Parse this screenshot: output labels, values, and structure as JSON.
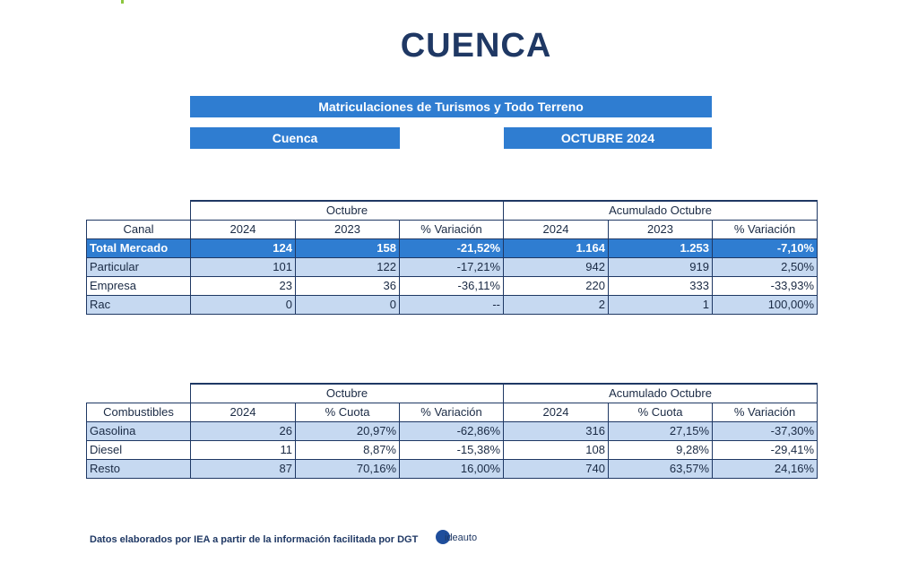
{
  "title": "CUENCA",
  "banner_main": "Matriculaciones de Turismos y Todo Terreno",
  "banner_region": "Cuenca",
  "banner_period": "OCTUBRE 2024",
  "table1": {
    "group_month": "Octubre",
    "group_cumulative": "Acumulado Octubre",
    "headers": [
      "Canal",
      "2024",
      "2023",
      "% Variación",
      "2024",
      "2023",
      "% Variación"
    ],
    "rows": [
      [
        "Total Mercado",
        "124",
        "158",
        "-21,52%",
        "1.164",
        "1.253",
        "-7,10%"
      ],
      [
        "Particular",
        "101",
        "122",
        "-17,21%",
        "942",
        "919",
        "2,50%"
      ],
      [
        "Empresa",
        "23",
        "36",
        "-36,11%",
        "220",
        "333",
        "-33,93%"
      ],
      [
        "Rac",
        "0",
        "0",
        "--",
        "2",
        "1",
        "100,00%"
      ]
    ]
  },
  "table2": {
    "group_month": "Octubre",
    "group_cumulative": "Acumulado Octubre",
    "headers": [
      "Combustibles",
      "2024",
      "% Cuota",
      "% Variación",
      "2024",
      "% Cuota",
      "% Variación"
    ],
    "rows": [
      [
        "Gasolina",
        "26",
        "20,97%",
        "-62,86%",
        "316",
        "27,15%",
        "-37,30%"
      ],
      [
        "Diesel",
        "11",
        "8,87%",
        "-15,38%",
        "108",
        "9,28%",
        "-29,41%"
      ],
      [
        "Resto",
        "87",
        "70,16%",
        "16,00%",
        "740",
        "63,57%",
        "24,16%"
      ]
    ]
  },
  "footer": "Datos elaborados por IEA a partir de la información facilitada por DGT",
  "logo_text": "ideauto"
}
